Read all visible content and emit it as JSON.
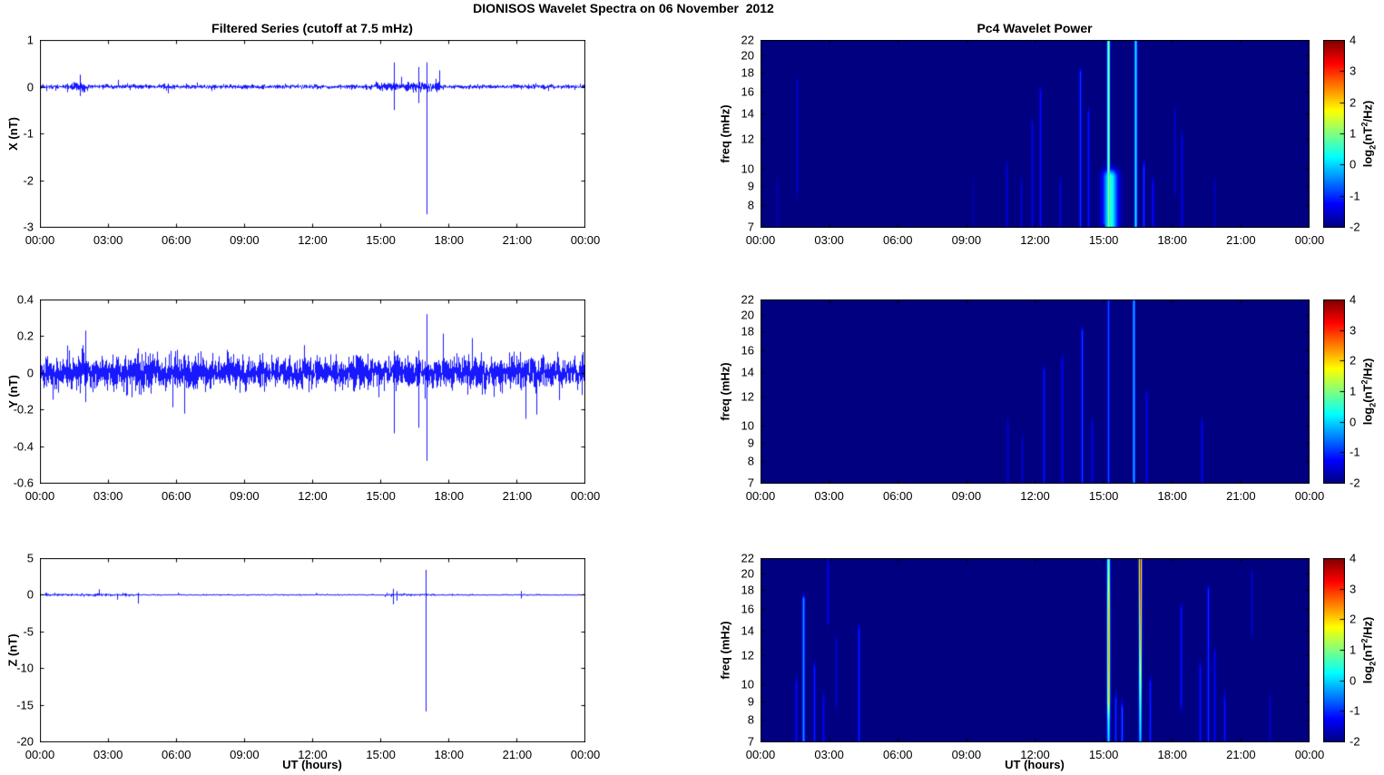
{
  "figure": {
    "title": "DIONISOS Wavelet Spectra on 06 November  2012",
    "colors": {
      "background": "#ffffff",
      "line": "#0000ff",
      "spectrogram_background": "#00008c",
      "frame": "#000000"
    }
  },
  "left_column": {
    "title": "Filtered Series (cutoff at 7.5 mHz)",
    "xlabel": "UT (hours)",
    "xticks_hours": [
      0,
      3,
      6,
      9,
      12,
      15,
      18,
      21,
      24
    ],
    "xtick_labels": [
      "00:00",
      "03:00",
      "06:00",
      "09:00",
      "12:00",
      "15:00",
      "18:00",
      "21:00",
      "00:00"
    ]
  },
  "right_column": {
    "title": "Pc4 Wavelet Power",
    "xlabel": "UT (hours)",
    "ylabel": "freq (mHz)",
    "xticks_hours": [
      0,
      3,
      6,
      9,
      12,
      15,
      18,
      21,
      24
    ],
    "xtick_labels": [
      "00:00",
      "03:00",
      "06:00",
      "09:00",
      "12:00",
      "15:00",
      "18:00",
      "21:00",
      "00:00"
    ],
    "ytick_values": [
      22,
      20,
      18,
      16,
      14,
      12,
      10,
      9,
      8,
      7
    ],
    "colorbar": {
      "range": [
        -2,
        4
      ],
      "ticks": [
        4,
        3,
        2,
        1,
        0,
        -1,
        -2
      ],
      "colormap": "jet",
      "label_parts": {
        "pre": "log",
        "sub": "2",
        "mid": "(nT",
        "sup": "2",
        "post": "/Hz)"
      }
    }
  },
  "chart_data": [
    {
      "type": "line",
      "panel": "X filtered series",
      "ylabel": "X (nT)",
      "ylim": [
        -3,
        1
      ],
      "yticks": [
        1,
        0,
        -1,
        -2,
        -3
      ],
      "xlim_hours": [
        0,
        24
      ],
      "seed": 11,
      "samples": 4,
      "noise_profile": [
        [
          0,
          24,
          0.022
        ],
        [
          1.4,
          2.1,
          0.05
        ],
        [
          5.3,
          5.9,
          0.032
        ],
        [
          14.7,
          17.6,
          0.05
        ]
      ],
      "spikes": [
        {
          "t": 1.75,
          "hi": 0.25,
          "lo": -0.2
        },
        {
          "t": 15.62,
          "hi": 0.52,
          "lo": -0.5
        },
        {
          "t": 16.67,
          "hi": 0.42,
          "lo": -0.35
        },
        {
          "t": 17.05,
          "hi": 0.52,
          "lo": -2.73
        }
      ]
    },
    {
      "type": "line",
      "panel": "Y filtered series",
      "ylabel": "Y (nT)",
      "ylim": [
        -0.6,
        0.4
      ],
      "yticks": [
        0.4,
        0.2,
        0,
        -0.2,
        -0.4,
        -0.6
      ],
      "xlim_hours": [
        0,
        24
      ],
      "seed": 23,
      "samples": 5,
      "noise_profile": [
        [
          0,
          24,
          0.042
        ],
        [
          1.8,
          2.1,
          0.055
        ],
        [
          13.5,
          14.5,
          0.05
        ]
      ],
      "spikes": [
        {
          "t": 2.0,
          "hi": 0.23,
          "lo": -0.16
        },
        {
          "t": 15.62,
          "hi": 0.12,
          "lo": -0.33
        },
        {
          "t": 16.67,
          "hi": 0.12,
          "lo": -0.3
        },
        {
          "t": 17.05,
          "hi": 0.32,
          "lo": -0.48
        }
      ]
    },
    {
      "type": "line",
      "panel": "Z filtered series",
      "ylabel": "Z (nT)",
      "ylim": [
        -20,
        5
      ],
      "yticks": [
        5,
        0,
        -5,
        -10,
        -15,
        -20
      ],
      "xlim_hours": [
        0,
        24
      ],
      "seed": 37,
      "samples": 4,
      "noise_profile": [
        [
          0,
          4.3,
          0.09
        ],
        [
          4.3,
          24,
          0.045
        ],
        [
          15.2,
          17.4,
          0.08
        ]
      ],
      "spikes": [
        {
          "t": 4.33,
          "hi": 0.3,
          "lo": -1.2
        },
        {
          "t": 15.55,
          "hi": 0.8,
          "lo": -1.3
        },
        {
          "t": 15.7,
          "hi": 0.5,
          "lo": -0.8
        },
        {
          "t": 17.0,
          "hi": 3.4,
          "lo": -15.9
        },
        {
          "t": 21.2,
          "hi": 0.5,
          "lo": -0.5
        }
      ]
    },
    {
      "type": "heatmap",
      "panel": "X Pc4 wavelet power",
      "ylabel": "freq (mHz)",
      "flim_mHz": [
        7,
        22
      ],
      "yscale": "log",
      "value_scale_log2": [
        -2,
        4
      ],
      "background_value": -2,
      "features": [
        {
          "t": 0.7,
          "f": [
            7,
            9
          ],
          "v": -1.7
        },
        {
          "t": 1.6,
          "f": [
            9,
            17
          ],
          "v": -1.55
        },
        {
          "t": 9.3,
          "f": [
            7,
            9
          ],
          "v": -1.75
        },
        {
          "t": 10.75,
          "f": [
            7,
            10
          ],
          "v": -1.45
        },
        {
          "t": 11.4,
          "f": [
            7,
            9
          ],
          "v": -1.5
        },
        {
          "t": 11.9,
          "f": [
            7,
            13
          ],
          "v": -1.35
        },
        {
          "t": 12.25,
          "f": [
            7,
            16
          ],
          "v": -1.2
        },
        {
          "t": 13.1,
          "f": [
            7,
            9
          ],
          "v": -1.45
        },
        {
          "t": 14.0,
          "f": [
            7,
            18
          ],
          "v": -0.9
        },
        {
          "t": 14.35,
          "f": [
            7,
            14
          ],
          "v": -1.15
        },
        {
          "t": 15.2,
          "f": [
            7,
            22
          ],
          "v": 1.3,
          "sigma": 1.1
        },
        {
          "type": "blob",
          "t": 15.28,
          "dt": 0.22,
          "f": [
            7,
            9.5
          ],
          "v": 0.45
        },
        {
          "t": 16.4,
          "f": [
            7,
            22
          ],
          "v": 0.25,
          "sigma": 1.1
        },
        {
          "t": 16.75,
          "f": [
            7,
            10
          ],
          "v": -0.9
        },
        {
          "t": 17.15,
          "f": [
            7,
            9
          ],
          "v": -1.2
        },
        {
          "t": 18.1,
          "f": [
            9,
            14
          ],
          "v": -1.5
        },
        {
          "t": 18.45,
          "f": [
            7,
            12
          ],
          "v": -1.35
        },
        {
          "t": 19.85,
          "f": [
            7,
            9
          ],
          "v": -1.6
        }
      ]
    },
    {
      "type": "heatmap",
      "panel": "Y Pc4 wavelet power",
      "ylabel": "freq (mHz)",
      "flim_mHz": [
        7,
        22
      ],
      "yscale": "log",
      "value_scale_log2": [
        -2,
        4
      ],
      "background_value": -2,
      "features": [
        {
          "t": 10.8,
          "f": [
            7,
            10
          ],
          "v": -1.5
        },
        {
          "t": 11.45,
          "f": [
            7,
            9
          ],
          "v": -1.55
        },
        {
          "t": 12.4,
          "f": [
            7,
            14
          ],
          "v": -1.15
        },
        {
          "t": 13.2,
          "f": [
            7,
            15
          ],
          "v": -1.25
        },
        {
          "t": 14.05,
          "f": [
            7,
            18
          ],
          "v": -0.85
        },
        {
          "t": 14.5,
          "f": [
            7,
            10
          ],
          "v": -1.35
        },
        {
          "t": 15.2,
          "f": [
            7,
            22
          ],
          "v": -0.7
        },
        {
          "t": 16.35,
          "f": [
            7,
            22
          ],
          "v": -0.1,
          "sigma": 1.0
        },
        {
          "t": 16.9,
          "f": [
            7,
            12
          ],
          "v": -1.3
        },
        {
          "t": 19.3,
          "f": [
            7,
            10
          ],
          "v": -1.3
        }
      ]
    },
    {
      "type": "heatmap",
      "panel": "Z Pc4 wavelet power",
      "ylabel": "freq (mHz)",
      "flim_mHz": [
        7,
        22
      ],
      "yscale": "log",
      "value_scale_log2": [
        -2,
        4
      ],
      "background_value": -2,
      "features": [
        {
          "t": 1.55,
          "f": [
            7,
            10
          ],
          "v": -1.2
        },
        {
          "t": 1.85,
          "f": [
            7,
            17
          ],
          "v": -0.35,
          "sigma": 1.1
        },
        {
          "t": 2.35,
          "f": [
            7,
            11
          ],
          "v": -1.05
        },
        {
          "t": 2.75,
          "f": [
            7,
            9
          ],
          "v": -1.25
        },
        {
          "t": 2.95,
          "f": [
            15,
            22
          ],
          "v": -1.35
        },
        {
          "t": 3.3,
          "f": [
            9,
            13
          ],
          "v": -1.5
        },
        {
          "t": 4.3,
          "f": [
            7,
            14
          ],
          "v": -1.05
        },
        {
          "t": 15.2,
          "f": [
            7,
            22
          ],
          "stops": [
            [
              22,
              1.1
            ],
            [
              16,
              2.1
            ],
            [
              12,
              2.3
            ],
            [
              9,
              1.9
            ],
            [
              8,
              0.6
            ],
            [
              7,
              0.1
            ]
          ],
          "sigma": 1.2
        },
        {
          "t": 15.55,
          "f": [
            7,
            9
          ],
          "v": -0.95
        },
        {
          "t": 15.8,
          "f": [
            7,
            8.5
          ],
          "v": -0.7
        },
        {
          "t": 16.6,
          "f": [
            7,
            22
          ],
          "stops": [
            [
              22,
              3.9
            ],
            [
              18,
              3.2
            ],
            [
              13,
              2.3
            ],
            [
              10,
              1.4
            ],
            [
              8,
              0.5
            ],
            [
              7,
              0.0
            ]
          ],
          "sigma": 1.1
        },
        {
          "t": 17.05,
          "f": [
            7,
            10
          ],
          "v": -1.05
        },
        {
          "t": 18.4,
          "f": [
            9,
            16
          ],
          "v": -1.15
        },
        {
          "t": 19.25,
          "f": [
            7,
            11
          ],
          "v": -1.15
        },
        {
          "t": 19.6,
          "f": [
            7,
            18
          ],
          "v": -0.95
        },
        {
          "t": 19.85,
          "f": [
            7,
            12
          ],
          "v": -1.25
        },
        {
          "t": 20.3,
          "f": [
            7,
            9
          ],
          "v": -1.15
        },
        {
          "t": 21.5,
          "f": [
            14,
            20
          ],
          "v": -1.5
        },
        {
          "t": 22.3,
          "f": [
            7,
            9
          ],
          "v": -1.6
        }
      ]
    }
  ]
}
